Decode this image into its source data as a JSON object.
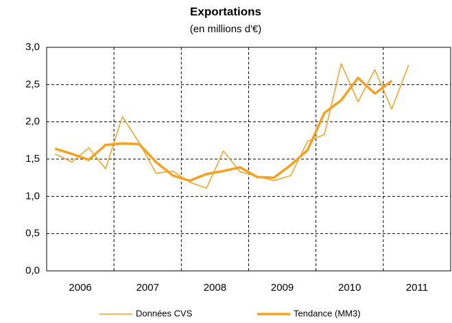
{
  "chart_data": {
    "type": "line",
    "title": "Exportations",
    "subtitle": "(en millions d'€)",
    "categories": [
      "2006",
      null,
      null,
      null,
      "2007",
      null,
      null,
      null,
      "2008",
      null,
      null,
      null,
      "2009",
      null,
      null,
      null,
      "2010",
      null,
      null,
      null,
      "2011",
      null
    ],
    "series": [
      {
        "name": "Données CVS",
        "color": "#f5a01e",
        "width": 1.5,
        "values": [
          1.57,
          1.46,
          1.65,
          1.37,
          2.07,
          1.72,
          1.31,
          1.34,
          1.19,
          1.11,
          1.61,
          1.33,
          1.27,
          1.21,
          1.28,
          1.74,
          1.83,
          2.78,
          2.27,
          2.7,
          2.17,
          2.76
        ]
      },
      {
        "name": "Tendance (MM3)",
        "color": "#f5a01e",
        "width": 3.5,
        "values": [
          1.64,
          1.57,
          1.49,
          1.69,
          1.71,
          1.7,
          1.46,
          1.28,
          1.21,
          1.3,
          1.34,
          1.39,
          1.26,
          1.25,
          1.42,
          1.62,
          2.12,
          2.29,
          2.59,
          2.38,
          2.55,
          null
        ]
      }
    ],
    "ylim": [
      0,
      3
    ],
    "yticks": [
      {
        "value": 0,
        "label": "0,0"
      },
      {
        "value": 0.5,
        "label": "0,5"
      },
      {
        "value": 1,
        "label": "1,0"
      },
      {
        "value": 1.5,
        "label": "1,5"
      },
      {
        "value": 2,
        "label": "2,0"
      },
      {
        "value": 2.5,
        "label": "2,5"
      },
      {
        "value": 3,
        "label": "3,0"
      }
    ],
    "grid": true,
    "legend": "bottom"
  }
}
